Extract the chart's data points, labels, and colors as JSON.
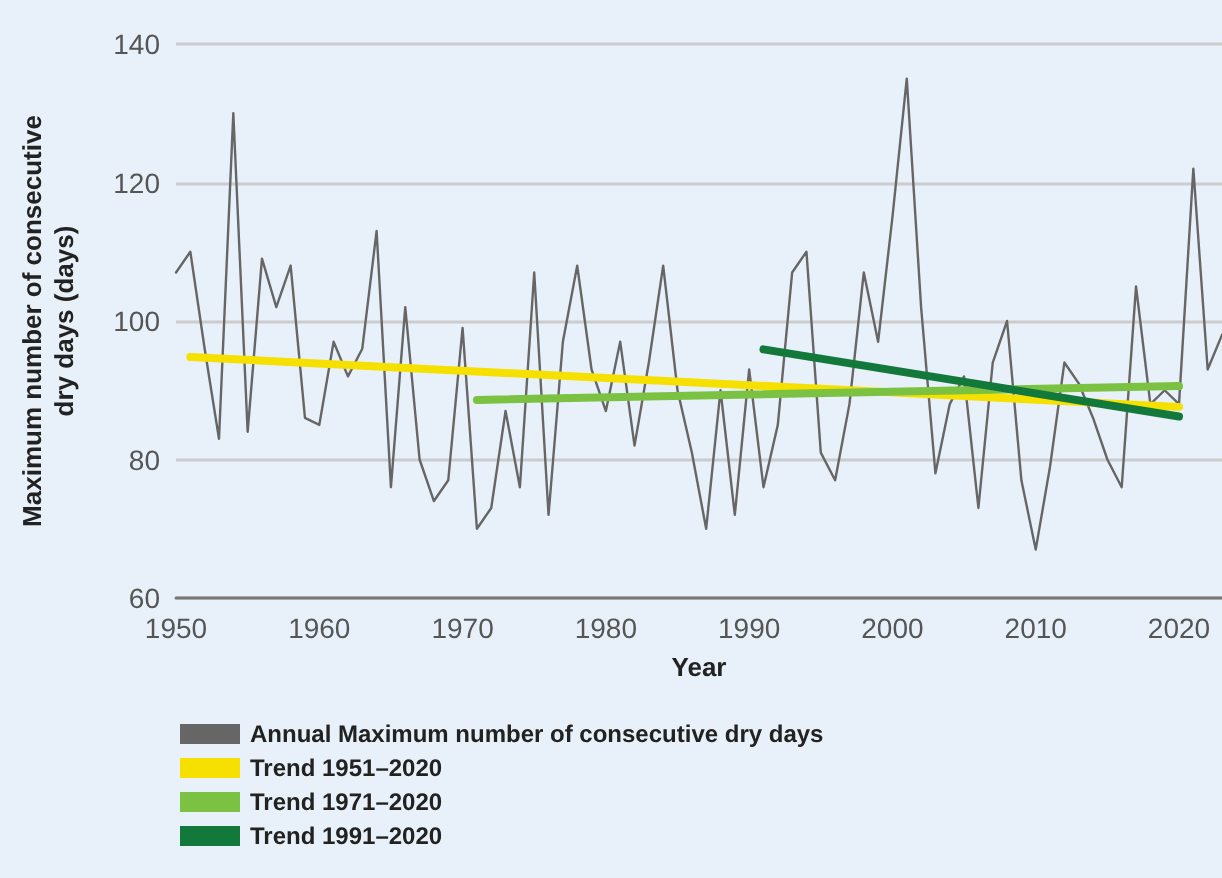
{
  "chart_data": {
    "type": "line",
    "xlabel": "Year",
    "ylabel": "Maximum number of consecutive dry days (days)",
    "xlim": [
      1950,
      2023
    ],
    "xticks": [
      1950,
      1960,
      1970,
      1980,
      1990,
      2000,
      2010,
      2020
    ],
    "ylim": [
      60,
      140
    ],
    "yticks": [
      60,
      80,
      100,
      120,
      140
    ],
    "grid": "y",
    "legend": "bottom",
    "marker": "none",
    "line_style": "solid",
    "series": [
      {
        "name": "Annual Maximum number of consecutive dry days",
        "color": "#666666",
        "x": [
          1950,
          1951,
          1952,
          1953,
          1954,
          1955,
          1956,
          1957,
          1958,
          1959,
          1960,
          1961,
          1962,
          1963,
          1964,
          1965,
          1966,
          1967,
          1968,
          1969,
          1970,
          1971,
          1972,
          1973,
          1974,
          1975,
          1976,
          1977,
          1978,
          1979,
          1980,
          1981,
          1982,
          1983,
          1984,
          1985,
          1986,
          1987,
          1988,
          1989,
          1990,
          1991,
          1992,
          1993,
          1994,
          1995,
          1996,
          1997,
          1998,
          1999,
          2000,
          2001,
          2002,
          2003,
          2004,
          2005,
          2006,
          2007,
          2008,
          2009,
          2010,
          2011,
          2012,
          2013,
          2014,
          2015,
          2016,
          2017,
          2018,
          2019,
          2020,
          2021,
          2022,
          2023
        ],
        "values": [
          107,
          110,
          96,
          83,
          130,
          84,
          109,
          102,
          108,
          86,
          85,
          97,
          92,
          96,
          113,
          76,
          102,
          80,
          74,
          77,
          99,
          70,
          73,
          87,
          76,
          107,
          72,
          97,
          108,
          93,
          87,
          97,
          82,
          94,
          108,
          90,
          81,
          70,
          90,
          72,
          93,
          76,
          85,
          107,
          110,
          81,
          77,
          88,
          107,
          97,
          115,
          135,
          102,
          78,
          88,
          92,
          73,
          94,
          100,
          77,
          67,
          79,
          94,
          91,
          86,
          80,
          76,
          105,
          88,
          90,
          88,
          122,
          93,
          98
        ]
      },
      {
        "name": "Trend 1951–2020",
        "color": "#f5e000",
        "x": [
          1951,
          2020
        ],
        "values": [
          94.8,
          87.6
        ]
      },
      {
        "name": "Trend 1971–2020",
        "color": "#7cc242",
        "x": [
          1971,
          2020
        ],
        "values": [
          88.6,
          90.6
        ]
      },
      {
        "name": "Trend 1991–2020",
        "color": "#13793b",
        "x": [
          1991,
          2020
        ],
        "values": [
          95.9,
          86.2
        ]
      }
    ]
  }
}
